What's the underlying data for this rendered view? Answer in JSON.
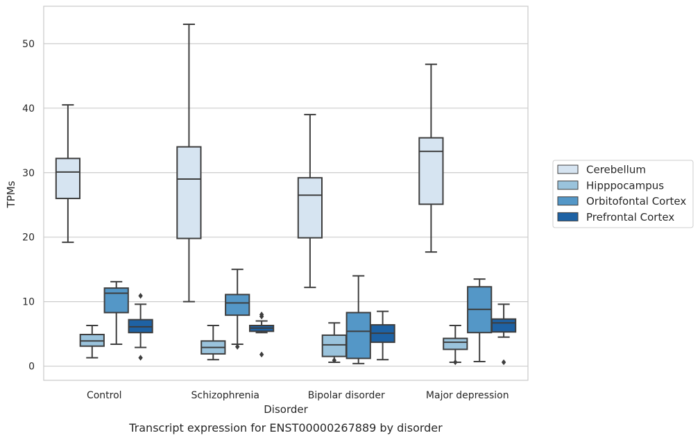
{
  "caption": "Transcript expression for ENST00000267889 by disorder",
  "chart_data": {
    "type": "box",
    "title": "",
    "xlabel": "Disorder",
    "ylabel": "TPMs",
    "ylim": [
      -2.2,
      55.8
    ],
    "yticks": [
      0,
      10,
      20,
      30,
      40,
      50
    ],
    "grid": "horizontal",
    "legend_placement": "right",
    "categories": [
      "Control",
      "Schizophrenia",
      "Bipolar disorder",
      "Major depression"
    ],
    "series": [
      {
        "name": "Cerebellum",
        "color": "#d6e4f1",
        "boxes": [
          {
            "whisker_low": 19.2,
            "q1": 26.0,
            "median": 30.1,
            "q3": 32.2,
            "whisker_high": 40.5,
            "outliers": []
          },
          {
            "whisker_low": 10.0,
            "q1": 19.8,
            "median": 29.0,
            "q3": 34.0,
            "whisker_high": 53.0,
            "outliers": []
          },
          {
            "whisker_low": 12.2,
            "q1": 19.9,
            "median": 26.5,
            "q3": 29.2,
            "whisker_high": 39.0,
            "outliers": []
          },
          {
            "whisker_low": 17.7,
            "q1": 25.1,
            "median": 33.3,
            "q3": 35.4,
            "whisker_high": 46.8,
            "outliers": []
          }
        ]
      },
      {
        "name": "Hipppocampus",
        "color": "#9ac3dc",
        "boxes": [
          {
            "whisker_low": 1.3,
            "q1": 3.1,
            "median": 3.9,
            "q3": 4.9,
            "whisker_high": 6.3,
            "outliers": []
          },
          {
            "whisker_low": 1.0,
            "q1": 1.9,
            "median": 2.9,
            "q3": 3.9,
            "whisker_high": 6.3,
            "outliers": []
          },
          {
            "whisker_low": 0.6,
            "q1": 1.5,
            "median": 3.3,
            "q3": 4.8,
            "whisker_high": 6.7,
            "outliers": [
              0.9
            ]
          },
          {
            "whisker_low": 0.6,
            "q1": 2.6,
            "median": 3.7,
            "q3": 4.3,
            "whisker_high": 6.3,
            "outliers": [
              0.6
            ]
          }
        ]
      },
      {
        "name": "Orbitofontal Cortex",
        "color": "#5497c7",
        "boxes": [
          {
            "whisker_low": 3.4,
            "q1": 8.3,
            "median": 11.3,
            "q3": 12.1,
            "whisker_high": 13.1,
            "outliers": []
          },
          {
            "whisker_low": 3.4,
            "q1": 7.9,
            "median": 9.8,
            "q3": 11.1,
            "whisker_high": 15.0,
            "outliers": [
              3.0
            ]
          },
          {
            "whisker_low": 0.4,
            "q1": 1.2,
            "median": 5.4,
            "q3": 8.3,
            "whisker_high": 14.0,
            "outliers": []
          },
          {
            "whisker_low": 0.7,
            "q1": 5.2,
            "median": 8.8,
            "q3": 12.3,
            "whisker_high": 13.5,
            "outliers": []
          }
        ]
      },
      {
        "name": "Prefrontal Cortex",
        "color": "#1e62a4",
        "boxes": [
          {
            "whisker_low": 2.9,
            "q1": 5.2,
            "median": 6.1,
            "q3": 7.2,
            "whisker_high": 9.6,
            "outliers": [
              10.9,
              1.3
            ]
          },
          {
            "whisker_low": 5.2,
            "q1": 5.4,
            "median": 5.9,
            "q3": 6.3,
            "whisker_high": 7.0,
            "outliers": [
              7.7,
              8.0,
              1.8
            ]
          },
          {
            "whisker_low": 1.0,
            "q1": 3.7,
            "median": 5.1,
            "q3": 6.4,
            "whisker_high": 8.5,
            "outliers": []
          },
          {
            "whisker_low": 4.5,
            "q1": 5.3,
            "median": 6.7,
            "q3": 7.3,
            "whisker_high": 9.6,
            "outliers": [
              0.6
            ]
          }
        ]
      }
    ]
  }
}
